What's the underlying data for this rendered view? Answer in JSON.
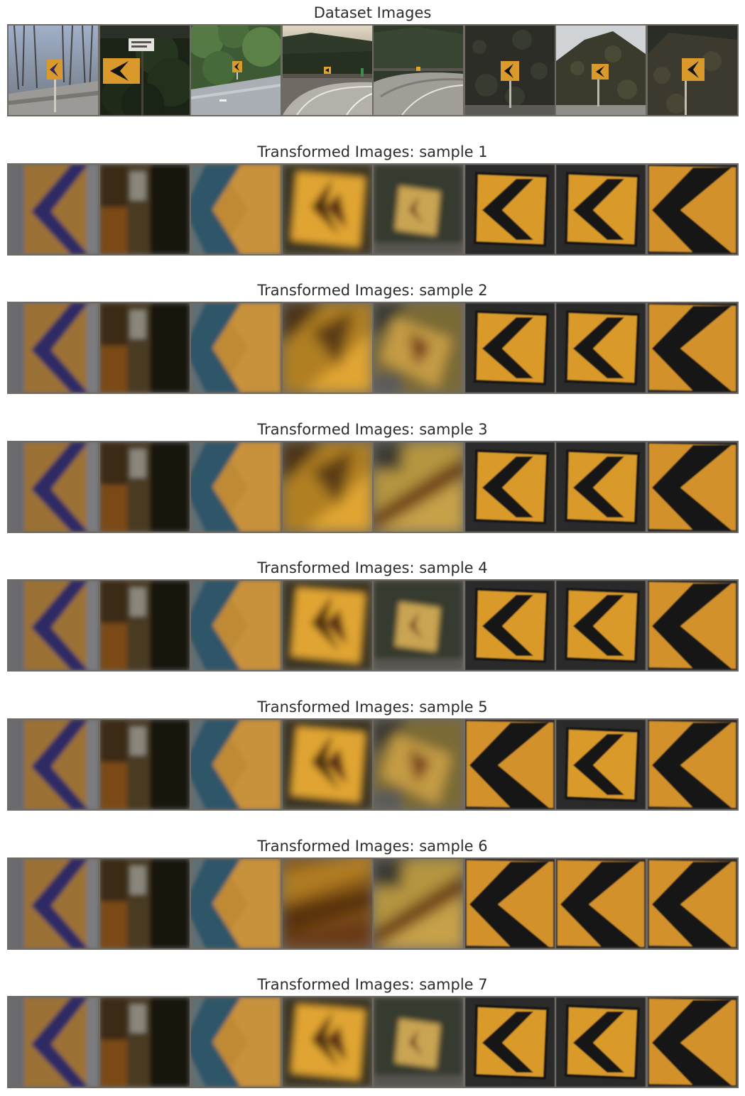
{
  "rows": [
    {
      "title": "Dataset Images",
      "tiles": [
        {
          "scene": "roadside-sign"
        },
        {
          "scene": "dark-sign-bush"
        },
        {
          "scene": "green-hill-road"
        },
        {
          "scene": "curve-road-1"
        },
        {
          "scene": "curve-road-2"
        },
        {
          "scene": "dark-hill-sign"
        },
        {
          "scene": "hill-sign-light"
        },
        {
          "scene": "hill-sign-dark"
        }
      ]
    },
    {
      "title": "Transformed Images: sample 1",
      "tiles": [
        {
          "scene": "closeup-purple"
        },
        {
          "scene": "closeup-dark-pole"
        },
        {
          "scene": "closeup-blue"
        },
        {
          "scene": "blur-sign-bright"
        },
        {
          "scene": "blur-sign-small"
        },
        {
          "scene": "crisp-sign"
        },
        {
          "scene": "crisp-sign"
        },
        {
          "scene": "crisp-sign-large"
        }
      ]
    },
    {
      "title": "Transformed Images: sample 2",
      "tiles": [
        {
          "scene": "closeup-purple"
        },
        {
          "scene": "closeup-dark-pole"
        },
        {
          "scene": "closeup-blue"
        },
        {
          "scene": "blur-heavy-gold"
        },
        {
          "scene": "blur-heavy-olive"
        },
        {
          "scene": "crisp-sign"
        },
        {
          "scene": "crisp-sign"
        },
        {
          "scene": "crisp-sign-large"
        }
      ]
    },
    {
      "title": "Transformed Images: sample 3",
      "tiles": [
        {
          "scene": "closeup-purple"
        },
        {
          "scene": "closeup-dark-pole"
        },
        {
          "scene": "closeup-blue"
        },
        {
          "scene": "blur-heavy-gold"
        },
        {
          "scene": "blur-streak"
        },
        {
          "scene": "crisp-sign"
        },
        {
          "scene": "crisp-sign"
        },
        {
          "scene": "crisp-sign-large"
        }
      ]
    },
    {
      "title": "Transformed Images: sample 4",
      "tiles": [
        {
          "scene": "closeup-purple"
        },
        {
          "scene": "closeup-dark-pole"
        },
        {
          "scene": "closeup-blue"
        },
        {
          "scene": "blur-sign-bright"
        },
        {
          "scene": "blur-sign-small"
        },
        {
          "scene": "crisp-sign"
        },
        {
          "scene": "crisp-sign"
        },
        {
          "scene": "crisp-sign-large"
        }
      ]
    },
    {
      "title": "Transformed Images: sample 5",
      "tiles": [
        {
          "scene": "closeup-purple"
        },
        {
          "scene": "closeup-dark-pole"
        },
        {
          "scene": "closeup-blue"
        },
        {
          "scene": "blur-sign-bright"
        },
        {
          "scene": "blur-heavy-olive"
        },
        {
          "scene": "crisp-sign-large"
        },
        {
          "scene": "crisp-sign"
        },
        {
          "scene": "crisp-sign-large"
        }
      ]
    },
    {
      "title": "Transformed Images: sample 6",
      "tiles": [
        {
          "scene": "closeup-purple"
        },
        {
          "scene": "closeup-dark-pole"
        },
        {
          "scene": "closeup-blue"
        },
        {
          "scene": "blur-streak-brown"
        },
        {
          "scene": "blur-streak"
        },
        {
          "scene": "crisp-sign-large"
        },
        {
          "scene": "crisp-sign-large"
        },
        {
          "scene": "crisp-sign-large"
        }
      ]
    },
    {
      "title": "Transformed Images: sample 7",
      "tiles": [
        {
          "scene": "closeup-purple"
        },
        {
          "scene": "closeup-dark-pole"
        },
        {
          "scene": "closeup-blue"
        },
        {
          "scene": "blur-sign-bright"
        },
        {
          "scene": "blur-sign-small"
        },
        {
          "scene": "crisp-sign"
        },
        {
          "scene": "crisp-sign"
        },
        {
          "scene": "crisp-sign-large"
        }
      ]
    }
  ],
  "colors": {
    "title_text": "#2d2d2d",
    "strip_border": "#6f6a63",
    "sign_orange": "#d99a2b",
    "sign_black": "#141519"
  }
}
